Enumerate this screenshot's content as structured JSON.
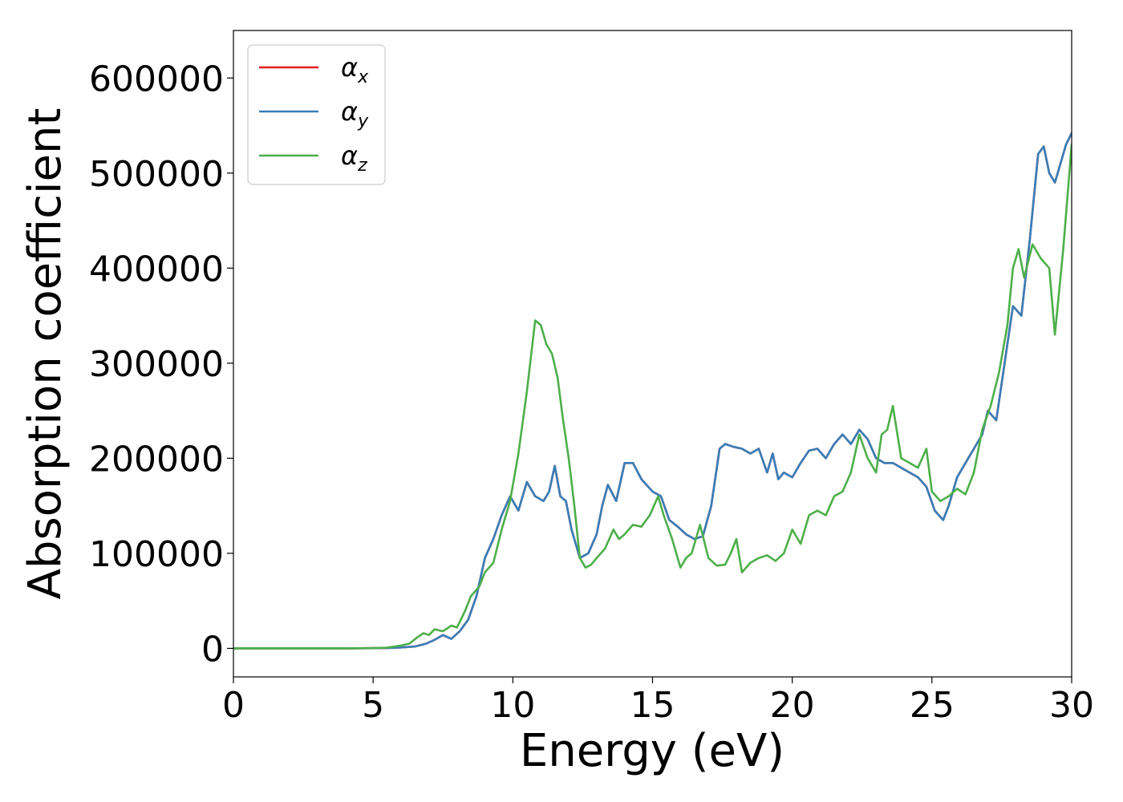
{
  "chart_data": {
    "type": "line",
    "title": "",
    "xlabel": "Energy (eV)",
    "ylabel": "Absorption coefficient",
    "xlim": [
      0,
      30
    ],
    "ylim": [
      -30000,
      650000
    ],
    "xticks": [
      0,
      5,
      10,
      15,
      20,
      25,
      30
    ],
    "xtick_labels": [
      "0",
      "5",
      "10",
      "15",
      "20",
      "25",
      "30"
    ],
    "yticks": [
      0,
      100000,
      200000,
      300000,
      400000,
      500000,
      600000
    ],
    "ytick_labels": [
      "0",
      "100000",
      "200000",
      "300000",
      "400000",
      "500000",
      "600000"
    ],
    "grid": false,
    "legend_position": "top-left",
    "series": [
      {
        "name": "α",
        "subscript": "x",
        "color": "#e41a1c",
        "x": [
          0,
          2,
          4,
          5,
          5.5,
          6,
          6.5,
          6.9,
          7.2,
          7.5,
          7.8,
          8.1,
          8.4,
          8.7,
          9,
          9.3,
          9.6,
          9.9,
          10.2,
          10.5,
          10.8,
          11.1,
          11.3,
          11.5,
          11.7,
          11.9,
          12.1,
          12.4,
          12.7,
          13,
          13.2,
          13.4,
          13.7,
          14,
          14.3,
          14.6,
          15,
          15.3,
          15.6,
          15.9,
          16.2,
          16.5,
          16.8,
          17.1,
          17.4,
          17.6,
          17.9,
          18.2,
          18.5,
          18.8,
          19.1,
          19.3,
          19.5,
          19.7,
          20,
          20.3,
          20.6,
          20.9,
          21.2,
          21.5,
          21.8,
          22.1,
          22.4,
          22.7,
          23,
          23.3,
          23.6,
          23.9,
          24.2,
          24.5,
          24.8,
          25.1,
          25.4,
          25.6,
          25.9,
          26.2,
          26.5,
          26.8,
          27,
          27.3,
          27.6,
          27.9,
          28.2,
          28.5,
          28.8,
          29,
          29.2,
          29.4,
          29.6,
          29.8,
          30
        ],
        "y": [
          0,
          0,
          0,
          200,
          400,
          1000,
          2000,
          5000,
          9000,
          14000,
          10000,
          18000,
          30000,
          55000,
          95000,
          115000,
          140000,
          160000,
          145000,
          175000,
          160000,
          155000,
          165000,
          192000,
          160000,
          155000,
          125000,
          95000,
          100000,
          120000,
          150000,
          172000,
          155000,
          195000,
          195000,
          178000,
          165000,
          160000,
          135000,
          128000,
          120000,
          115000,
          118000,
          150000,
          210000,
          215000,
          212000,
          210000,
          205000,
          210000,
          185000,
          205000,
          178000,
          185000,
          180000,
          195000,
          208000,
          210000,
          200000,
          215000,
          225000,
          215000,
          230000,
          220000,
          200000,
          195000,
          195000,
          190000,
          185000,
          180000,
          170000,
          145000,
          135000,
          150000,
          180000,
          195000,
          210000,
          225000,
          250000,
          240000,
          300000,
          360000,
          350000,
          430000,
          520000,
          528000,
          500000,
          490000,
          510000,
          530000,
          542000
        ]
      },
      {
        "name": "α",
        "subscript": "y",
        "color": "#377eb8",
        "x": [
          0,
          2,
          4,
          5,
          5.5,
          6,
          6.5,
          6.9,
          7.2,
          7.5,
          7.8,
          8.1,
          8.4,
          8.7,
          9,
          9.3,
          9.6,
          9.9,
          10.2,
          10.5,
          10.8,
          11.1,
          11.3,
          11.5,
          11.7,
          11.9,
          12.1,
          12.4,
          12.7,
          13,
          13.2,
          13.4,
          13.7,
          14,
          14.3,
          14.6,
          15,
          15.3,
          15.6,
          15.9,
          16.2,
          16.5,
          16.8,
          17.1,
          17.4,
          17.6,
          17.9,
          18.2,
          18.5,
          18.8,
          19.1,
          19.3,
          19.5,
          19.7,
          20,
          20.3,
          20.6,
          20.9,
          21.2,
          21.5,
          21.8,
          22.1,
          22.4,
          22.7,
          23,
          23.3,
          23.6,
          23.9,
          24.2,
          24.5,
          24.8,
          25.1,
          25.4,
          25.6,
          25.9,
          26.2,
          26.5,
          26.8,
          27,
          27.3,
          27.6,
          27.9,
          28.2,
          28.5,
          28.8,
          29,
          29.2,
          29.4,
          29.6,
          29.8,
          30
        ],
        "y": [
          0,
          0,
          0,
          200,
          400,
          1000,
          2000,
          5000,
          9000,
          14000,
          10000,
          18000,
          30000,
          55000,
          95000,
          115000,
          140000,
          160000,
          145000,
          175000,
          160000,
          155000,
          165000,
          192000,
          160000,
          155000,
          125000,
          95000,
          100000,
          120000,
          150000,
          172000,
          155000,
          195000,
          195000,
          178000,
          165000,
          160000,
          135000,
          128000,
          120000,
          115000,
          118000,
          150000,
          210000,
          215000,
          212000,
          210000,
          205000,
          210000,
          185000,
          205000,
          178000,
          185000,
          180000,
          195000,
          208000,
          210000,
          200000,
          215000,
          225000,
          215000,
          230000,
          220000,
          200000,
          195000,
          195000,
          190000,
          185000,
          180000,
          170000,
          145000,
          135000,
          150000,
          180000,
          195000,
          210000,
          225000,
          250000,
          240000,
          300000,
          360000,
          350000,
          430000,
          520000,
          528000,
          500000,
          490000,
          510000,
          530000,
          542000
        ]
      },
      {
        "name": "α",
        "subscript": "z",
        "color": "#4daf4a",
        "x": [
          0,
          2,
          4,
          5,
          5.5,
          6,
          6.3,
          6.6,
          6.8,
          7,
          7.2,
          7.5,
          7.8,
          8,
          8.3,
          8.5,
          8.8,
          9,
          9.3,
          9.6,
          9.9,
          10.2,
          10.5,
          10.8,
          11,
          11.2,
          11.4,
          11.6,
          11.8,
          12,
          12.2,
          12.4,
          12.6,
          12.8,
          13,
          13.3,
          13.6,
          13.8,
          14,
          14.3,
          14.6,
          14.9,
          15.2,
          15.4,
          15.7,
          16,
          16.2,
          16.4,
          16.7,
          17,
          17.3,
          17.6,
          17.8,
          18,
          18.2,
          18.5,
          18.8,
          19.1,
          19.4,
          19.7,
          20,
          20.3,
          20.6,
          20.9,
          21.2,
          21.5,
          21.8,
          22.1,
          22.4,
          22.7,
          23,
          23.2,
          23.4,
          23.6,
          23.9,
          24.2,
          24.5,
          24.8,
          25,
          25.3,
          25.6,
          25.9,
          26.2,
          26.5,
          26.8,
          27.1,
          27.4,
          27.7,
          27.9,
          28.1,
          28.3,
          28.6,
          28.9,
          29.2,
          29.4,
          29.7,
          30
        ],
        "y": [
          0,
          0,
          0,
          300,
          800,
          3000,
          5000,
          12000,
          16000,
          14000,
          20000,
          18000,
          24000,
          22000,
          40000,
          55000,
          65000,
          80000,
          90000,
          125000,
          155000,
          205000,
          270000,
          345000,
          340000,
          320000,
          310000,
          285000,
          240000,
          200000,
          150000,
          95000,
          85000,
          88000,
          95000,
          105000,
          125000,
          115000,
          120000,
          130000,
          128000,
          140000,
          160000,
          140000,
          115000,
          85000,
          95000,
          100000,
          130000,
          95000,
          87000,
          88000,
          100000,
          115000,
          80000,
          90000,
          95000,
          98000,
          92000,
          100000,
          125000,
          110000,
          140000,
          145000,
          140000,
          160000,
          165000,
          185000,
          225000,
          200000,
          185000,
          225000,
          230000,
          255000,
          200000,
          195000,
          190000,
          210000,
          165000,
          155000,
          160000,
          168000,
          162000,
          185000,
          230000,
          255000,
          290000,
          340000,
          400000,
          420000,
          390000,
          425000,
          410000,
          400000,
          330000,
          420000,
          530000
        ]
      }
    ]
  }
}
